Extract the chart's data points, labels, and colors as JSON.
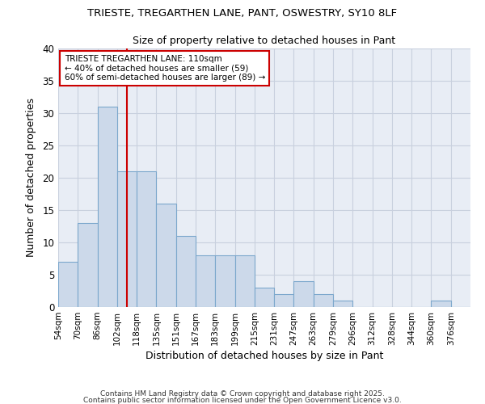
{
  "title1": "TRIESTE, TREGARTHEN LANE, PANT, OSWESTRY, SY10 8LF",
  "title2": "Size of property relative to detached houses in Pant",
  "xlabel": "Distribution of detached houses by size in Pant",
  "ylabel": "Number of detached properties",
  "categories": [
    "54sqm",
    "70sqm",
    "86sqm",
    "102sqm",
    "118sqm",
    "135sqm",
    "151sqm",
    "167sqm",
    "183sqm",
    "199sqm",
    "215sqm",
    "231sqm",
    "247sqm",
    "263sqm",
    "279sqm",
    "296sqm",
    "312sqm",
    "328sqm",
    "344sqm",
    "360sqm",
    "376sqm"
  ],
  "values": [
    7,
    13,
    31,
    21,
    21,
    16,
    11,
    8,
    8,
    8,
    3,
    2,
    4,
    2,
    1,
    0,
    0,
    0,
    0,
    1,
    0
  ],
  "bar_color": "#ccd9ea",
  "bar_edge_color": "#7ba7cc",
  "vline_color": "#cc0000",
  "annotation_text": "TRIESTE TREGARTHEN LANE: 110sqm\n← 40% of detached houses are smaller (59)\n60% of semi-detached houses are larger (89) →",
  "annotation_box_color": "#ffffff",
  "annotation_box_edge": "#cc0000",
  "ylim": [
    0,
    40
  ],
  "yticks": [
    0,
    5,
    10,
    15,
    20,
    25,
    30,
    35,
    40
  ],
  "grid_color": "#c8d0de",
  "background_color": "#ffffff",
  "plot_bg_color": "#e8edf5",
  "footer1": "Contains HM Land Registry data © Crown copyright and database right 2025.",
  "footer2": "Contains public sector information licensed under the Open Government Licence v3.0."
}
